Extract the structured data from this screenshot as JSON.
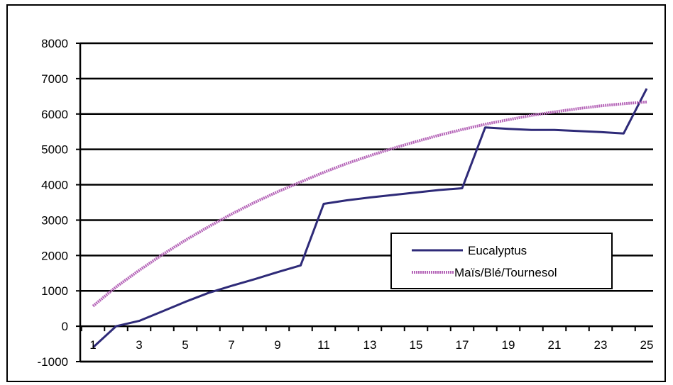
{
  "chart_data": {
    "type": "line",
    "title": "",
    "xlabel": "",
    "ylabel": "",
    "x": [
      1,
      2,
      3,
      4,
      5,
      6,
      7,
      8,
      9,
      10,
      11,
      12,
      13,
      14,
      15,
      16,
      17,
      18,
      19,
      20,
      21,
      22,
      23,
      24,
      25
    ],
    "x_tick_labels": [
      "1",
      "3",
      "5",
      "7",
      "9",
      "11",
      "13",
      "15",
      "17",
      "19",
      "21",
      "23",
      "25"
    ],
    "y_tick_labels": [
      "8000",
      "7000",
      "6000",
      "5000",
      "4000",
      "3000",
      "2000",
      "1000",
      "0",
      "-1000"
    ],
    "ylim": [
      -1000,
      8000
    ],
    "grid": "horizontal",
    "legend_position": "center-right",
    "series": [
      {
        "name": "Eucalyptus",
        "color": "#2e2a78",
        "style": "solid",
        "values": [
          -600,
          0,
          150,
          420,
          690,
          940,
          1140,
          1330,
          1530,
          1720,
          3460,
          3560,
          3640,
          3710,
          3780,
          3850,
          3900,
          5620,
          5580,
          5550,
          5550,
          5520,
          5490,
          5450,
          6720
        ]
      },
      {
        "name": "Maïs/Blé/Tournesol",
        "color": "#b565b8",
        "style": "dotted",
        "values": [
          570,
          1110,
          1580,
          2020,
          2430,
          2810,
          3170,
          3500,
          3800,
          4080,
          4350,
          4600,
          4820,
          5030,
          5220,
          5400,
          5560,
          5710,
          5840,
          5960,
          6060,
          6150,
          6230,
          6290,
          6340
        ]
      }
    ]
  }
}
